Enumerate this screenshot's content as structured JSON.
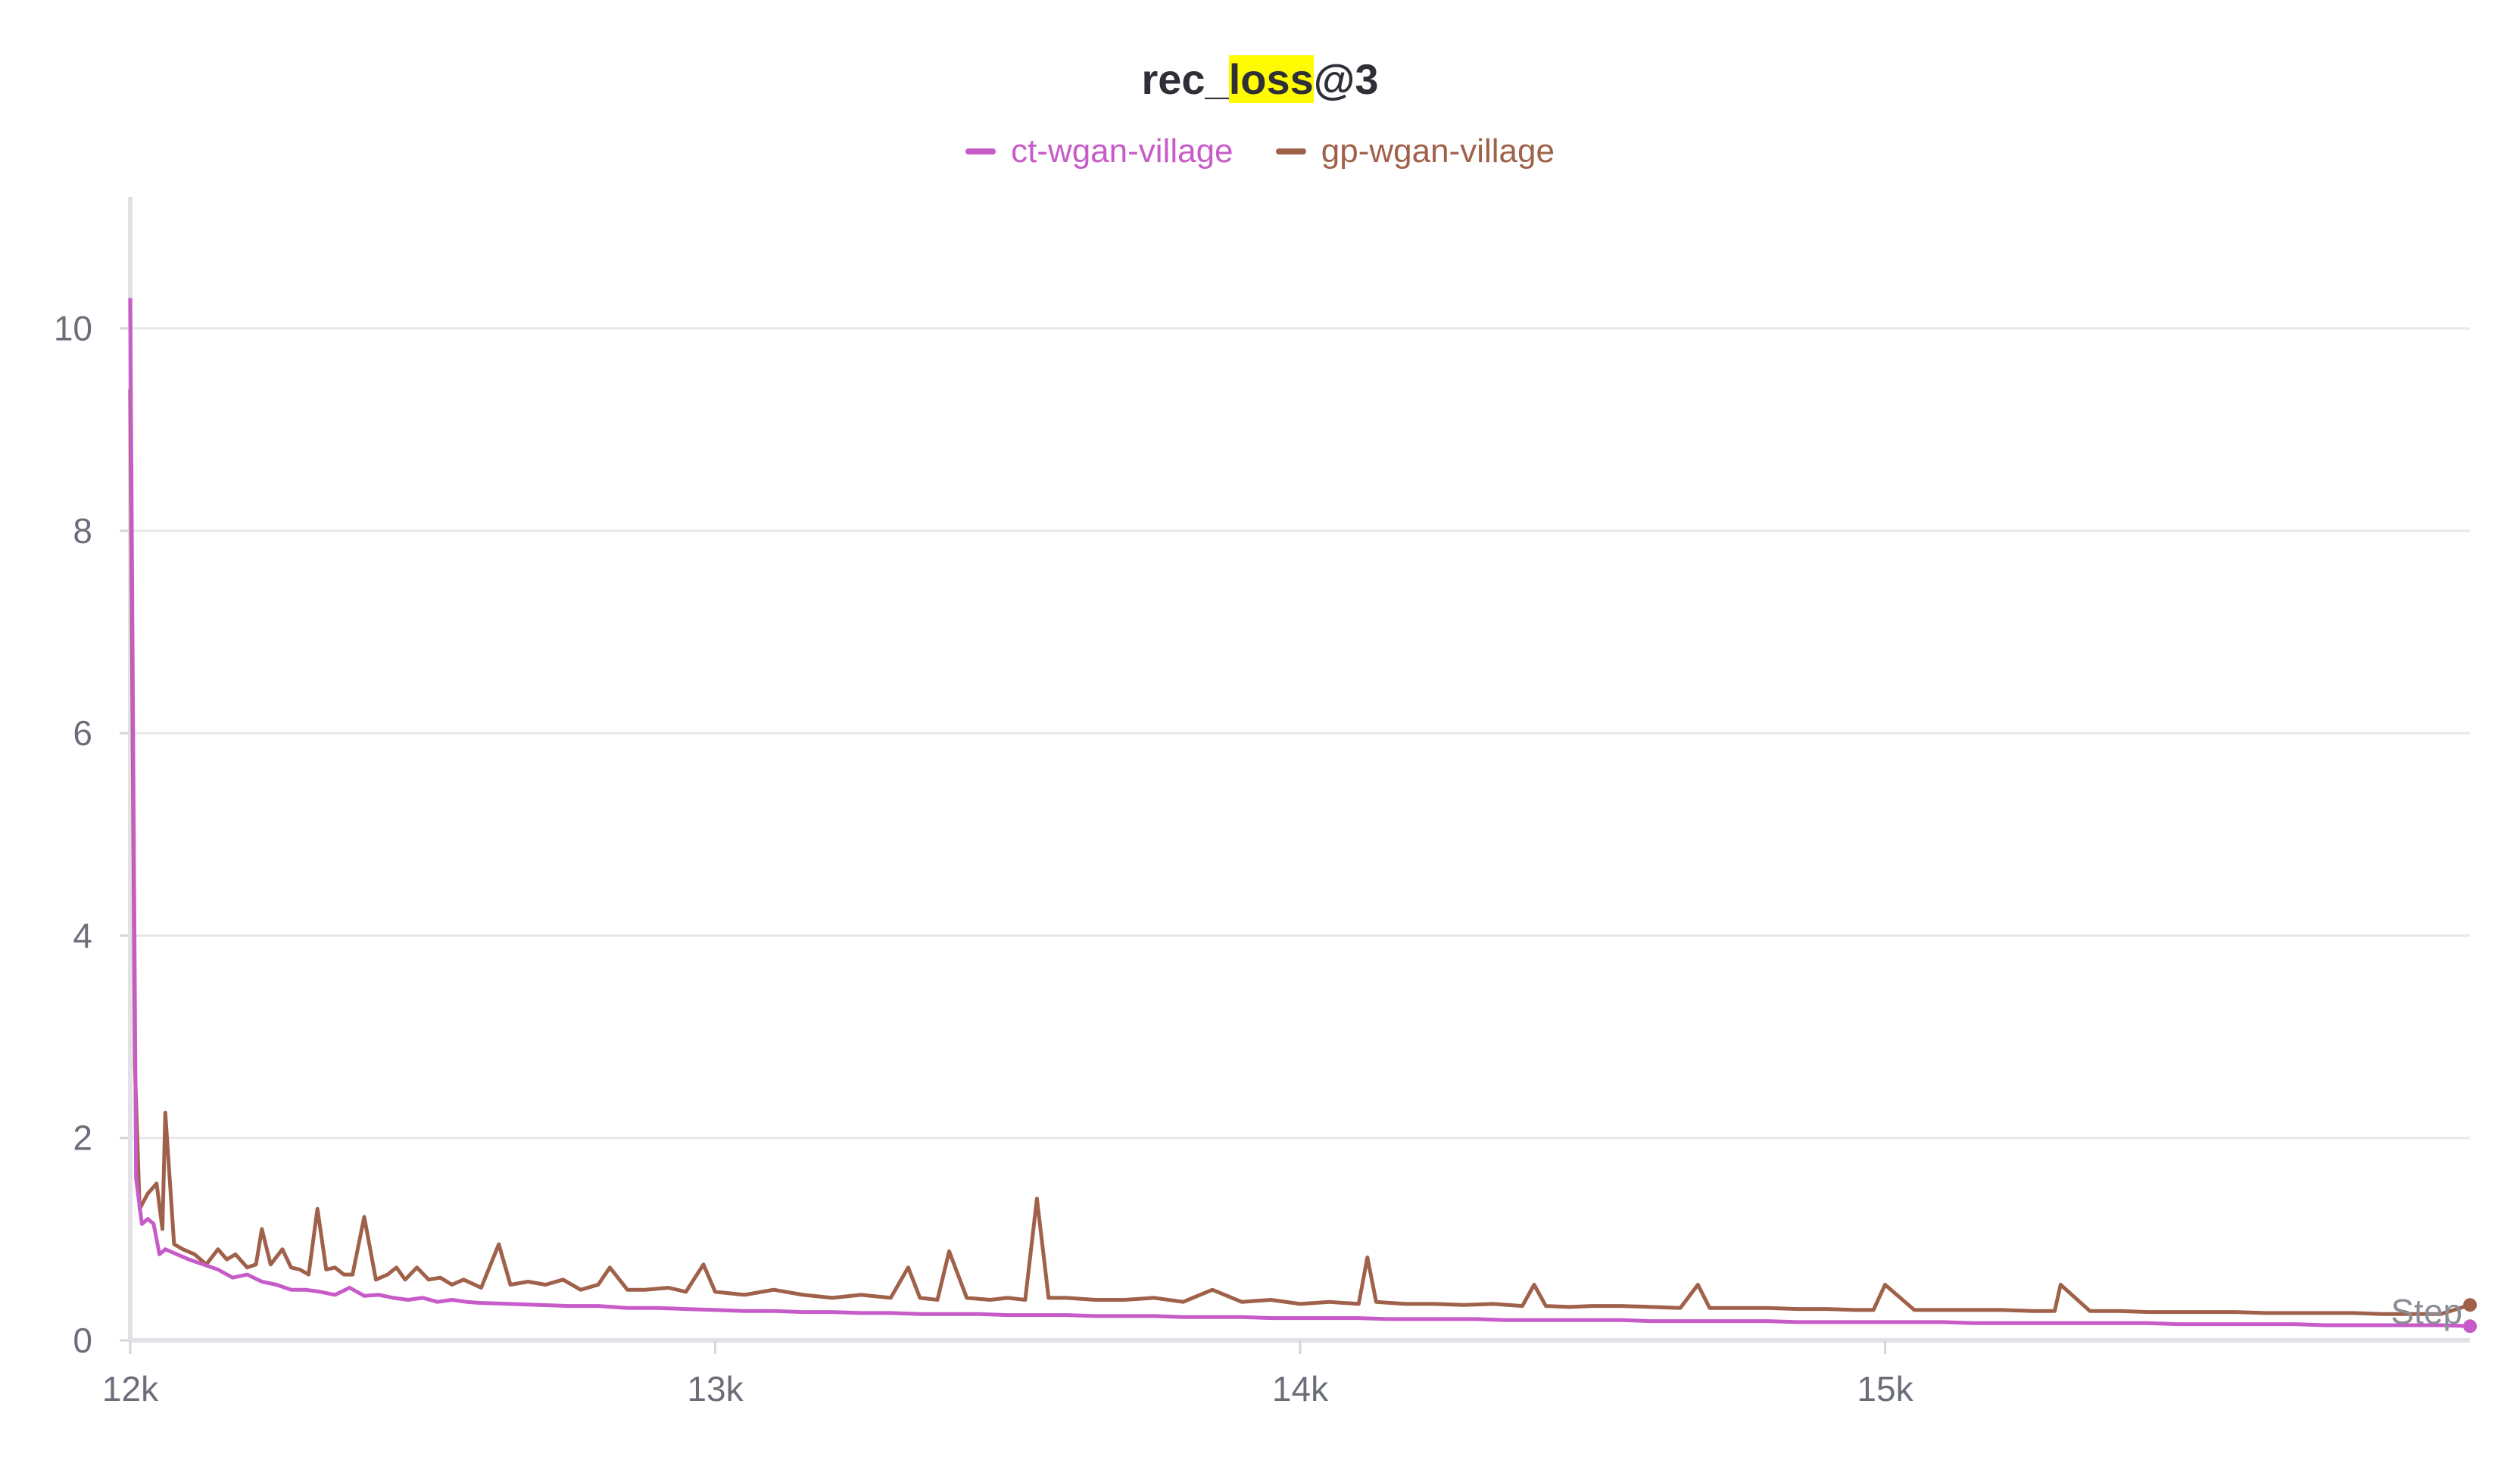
{
  "chart_data": {
    "type": "line",
    "title": "rec_loss@3",
    "title_parts": {
      "before": "rec_",
      "highlight": "loss",
      "after": "@3"
    },
    "xlabel": "Step",
    "ylabel": "",
    "xlim": [
      12000,
      16000
    ],
    "ylim": [
      0,
      11.3
    ],
    "x_ticks": [
      12000,
      13000,
      14000,
      15000
    ],
    "x_tick_labels": [
      "12k",
      "13k",
      "14k",
      "15k"
    ],
    "y_ticks": [
      0,
      2,
      4,
      6,
      8,
      10
    ],
    "y_tick_labels": [
      "0",
      "2",
      "4",
      "6",
      "8",
      "10"
    ],
    "grid": true,
    "legend_position": "top-center",
    "series": [
      {
        "name": "ct-wgan-village",
        "color": "#c75bc8",
        "x": [
          12000,
          12010,
          12020,
          12030,
          12040,
          12050,
          12060,
          12080,
          12100,
          12125,
          12150,
          12175,
          12200,
          12225,
          12250,
          12275,
          12300,
          12325,
          12350,
          12375,
          12400,
          12425,
          12450,
          12475,
          12500,
          12525,
          12550,
          12575,
          12600,
          12650,
          12700,
          12750,
          12800,
          12850,
          12900,
          12950,
          13000,
          13050,
          13100,
          13150,
          13200,
          13250,
          13300,
          13350,
          13400,
          13450,
          13500,
          13550,
          13600,
          13650,
          13700,
          13750,
          13800,
          13850,
          13900,
          13950,
          14000,
          14050,
          14100,
          14150,
          14200,
          14250,
          14300,
          14350,
          14400,
          14450,
          14500,
          14550,
          14600,
          14650,
          14700,
          14750,
          14800,
          14850,
          14900,
          14950,
          15000,
          15050,
          15100,
          15150,
          15200,
          15250,
          15300,
          15350,
          15400,
          15450,
          15500,
          15550,
          15600,
          15650,
          15700,
          15750,
          15800,
          15850,
          15900,
          15950,
          16000
        ],
        "values": [
          10.3,
          1.6,
          1.15,
          1.2,
          1.15,
          0.85,
          0.9,
          0.85,
          0.8,
          0.75,
          0.7,
          0.62,
          0.65,
          0.58,
          0.55,
          0.5,
          0.5,
          0.48,
          0.45,
          0.52,
          0.44,
          0.45,
          0.42,
          0.4,
          0.42,
          0.38,
          0.4,
          0.38,
          0.37,
          0.36,
          0.35,
          0.34,
          0.34,
          0.32,
          0.32,
          0.31,
          0.3,
          0.29,
          0.29,
          0.28,
          0.28,
          0.27,
          0.27,
          0.26,
          0.26,
          0.26,
          0.25,
          0.25,
          0.25,
          0.24,
          0.24,
          0.24,
          0.23,
          0.23,
          0.23,
          0.22,
          0.22,
          0.22,
          0.22,
          0.21,
          0.21,
          0.21,
          0.21,
          0.2,
          0.2,
          0.2,
          0.2,
          0.2,
          0.19,
          0.19,
          0.19,
          0.19,
          0.19,
          0.18,
          0.18,
          0.18,
          0.18,
          0.18,
          0.18,
          0.17,
          0.17,
          0.17,
          0.17,
          0.17,
          0.17,
          0.17,
          0.16,
          0.16,
          0.16,
          0.16,
          0.16,
          0.15,
          0.15,
          0.15,
          0.15,
          0.15,
          0.14
        ]
      },
      {
        "name": "gp-wgan-village",
        "color": "#a0614a",
        "x": [
          12000,
          12008,
          12016,
          12030,
          12045,
          12055,
          12060,
          12075,
          12090,
          12110,
          12130,
          12150,
          12165,
          12180,
          12200,
          12215,
          12225,
          12240,
          12260,
          12275,
          12290,
          12305,
          12320,
          12335,
          12350,
          12365,
          12380,
          12400,
          12420,
          12440,
          12455,
          12470,
          12490,
          12510,
          12530,
          12550,
          12570,
          12600,
          12630,
          12650,
          12680,
          12710,
          12740,
          12770,
          12800,
          12820,
          12850,
          12880,
          12920,
          12950,
          12980,
          13000,
          13050,
          13100,
          13150,
          13200,
          13250,
          13300,
          13330,
          13350,
          13380,
          13400,
          13430,
          13470,
          13500,
          13530,
          13550,
          13570,
          13600,
          13650,
          13700,
          13750,
          13800,
          13850,
          13900,
          13950,
          14000,
          14050,
          14100,
          14115,
          14130,
          14180,
          14230,
          14280,
          14330,
          14380,
          14400,
          14420,
          14460,
          14500,
          14550,
          14600,
          14650,
          14680,
          14700,
          14750,
          14800,
          14850,
          14900,
          14950,
          14980,
          15000,
          15050,
          15100,
          15150,
          15200,
          15250,
          15290,
          15300,
          15350,
          15400,
          15450,
          15500,
          15550,
          15600,
          15650,
          15700,
          15750,
          15800,
          15850,
          15900,
          15950,
          16000
        ],
        "values": [
          9.4,
          2.7,
          1.3,
          1.45,
          1.55,
          1.1,
          2.25,
          0.95,
          0.9,
          0.85,
          0.75,
          0.9,
          0.8,
          0.85,
          0.72,
          0.75,
          1.1,
          0.75,
          0.9,
          0.72,
          0.7,
          0.65,
          1.3,
          0.7,
          0.72,
          0.65,
          0.65,
          1.22,
          0.6,
          0.65,
          0.72,
          0.6,
          0.72,
          0.6,
          0.62,
          0.55,
          0.6,
          0.52,
          0.95,
          0.55,
          0.58,
          0.55,
          0.6,
          0.5,
          0.55,
          0.72,
          0.5,
          0.5,
          0.52,
          0.48,
          0.75,
          0.48,
          0.45,
          0.5,
          0.45,
          0.42,
          0.45,
          0.42,
          0.72,
          0.42,
          0.4,
          0.88,
          0.42,
          0.4,
          0.42,
          0.4,
          1.4,
          0.42,
          0.42,
          0.4,
          0.4,
          0.42,
          0.38,
          0.5,
          0.38,
          0.4,
          0.36,
          0.38,
          0.36,
          0.82,
          0.38,
          0.36,
          0.36,
          0.35,
          0.36,
          0.34,
          0.55,
          0.34,
          0.33,
          0.34,
          0.34,
          0.33,
          0.32,
          0.55,
          0.32,
          0.32,
          0.32,
          0.31,
          0.31,
          0.3,
          0.3,
          0.55,
          0.3,
          0.3,
          0.3,
          0.3,
          0.29,
          0.29,
          0.55,
          0.29,
          0.29,
          0.28,
          0.28,
          0.28,
          0.28,
          0.27,
          0.27,
          0.27,
          0.27,
          0.26,
          0.26,
          0.26,
          0.35
        ]
      }
    ]
  }
}
